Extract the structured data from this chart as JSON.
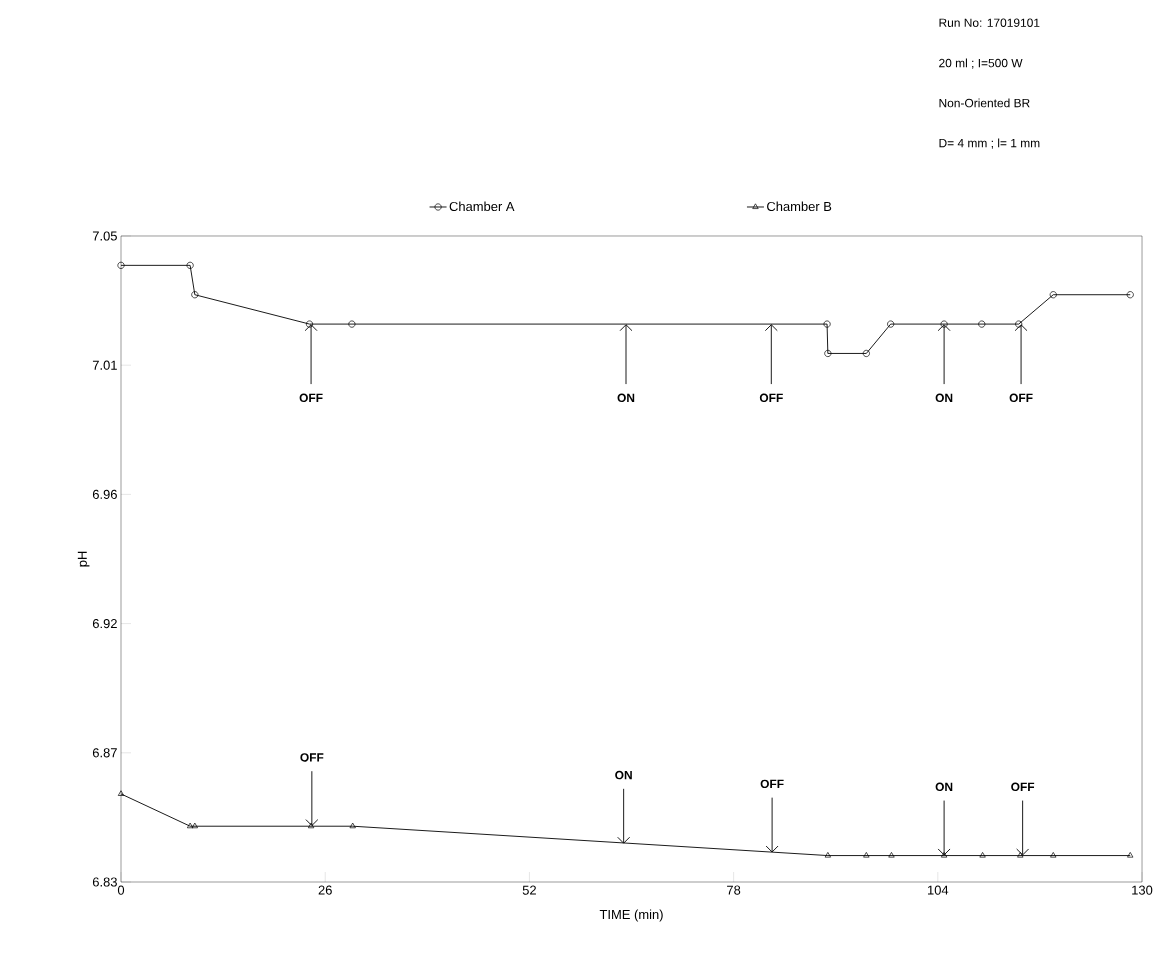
{
  "chart_data": {
    "type": "line",
    "xlabel": "TIME (min)",
    "ylabel": "pH",
    "xlim": [
      0,
      130
    ],
    "xticks": [
      0,
      26,
      52,
      78,
      104,
      130
    ],
    "ylim": [
      6.83,
      7.05
    ],
    "yticks": [
      {
        "value": 6.83,
        "label": "6.83"
      },
      {
        "value": 6.874,
        "label": "6.87"
      },
      {
        "value": 6.918,
        "label": "6.92"
      },
      {
        "value": 6.962,
        "label": "6.96"
      },
      {
        "value": 7.006,
        "label": "7.01"
      },
      {
        "value": 7.05,
        "label": "7.05"
      }
    ],
    "legend": "top",
    "grid": false,
    "line_style": "solid",
    "series": [
      {
        "name": "Chamber A",
        "color": "#000000",
        "marker": "circle",
        "x": [
          0,
          8.8,
          9.4,
          24,
          29.4,
          89.9,
          90,
          94.9,
          98,
          104.8,
          109.6,
          114.3,
          118.7,
          128.5
        ],
        "values": [
          7.04,
          7.04,
          7.03,
          7.02,
          7.02,
          7.02,
          7.01,
          7.01,
          7.02,
          7.02,
          7.02,
          7.02,
          7.03,
          7.03
        ]
      },
      {
        "name": "Chamber B",
        "color": "#000000",
        "marker": "triangle",
        "x": [
          0,
          8.8,
          9.4,
          24.2,
          29.5,
          90,
          94.9,
          98.1,
          104.8,
          109.7,
          114.5,
          118.7,
          128.5
        ],
        "values": [
          6.86,
          6.849,
          6.849,
          6.849,
          6.849,
          6.839,
          6.839,
          6.839,
          6.839,
          6.839,
          6.839,
          6.839,
          6.839
        ]
      }
    ],
    "annotations": [
      "Run No: 17019101",
      "20 ml ; I=500 W",
      "Non-Oriented BR",
      "D= 4 mm ; l= 1 mm",
      {
        "text": "OFF",
        "x": 24.2,
        "y": 7.02
      },
      {
        "text": "ON",
        "x": 64.3,
        "y": 7.02
      },
      {
        "text": "OFF",
        "x": 82.8,
        "y": 7.02
      },
      {
        "text": "ON",
        "x": 104.8,
        "y": 7.02
      },
      {
        "text": "OFF",
        "x": 114.6,
        "y": 7.02
      },
      {
        "text": "OFF",
        "x": 24.3,
        "y": 6.849
      },
      {
        "text": "ON",
        "x": 64,
        "y": 6.843
      },
      {
        "text": "OFF",
        "x": 82.9,
        "y": 6.84
      },
      {
        "text": "ON",
        "x": 104.8,
        "y": 6.839
      },
      {
        "text": "OFF",
        "x": 114.8,
        "y": 6.839
      }
    ]
  }
}
